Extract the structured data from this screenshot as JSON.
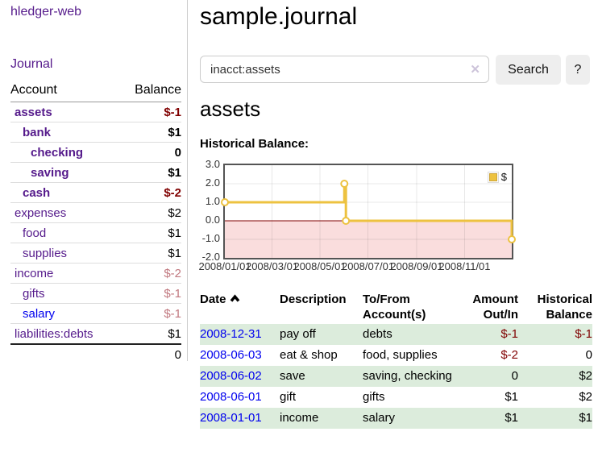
{
  "brand": "hledger-web",
  "nav": {
    "journal": "Journal"
  },
  "sidebar": {
    "header": {
      "account": "Account",
      "balance": "Balance"
    },
    "accounts": [
      {
        "name": "assets",
        "balance": "$-1"
      },
      {
        "name": "bank",
        "balance": "$1"
      },
      {
        "name": "checking",
        "balance": "0"
      },
      {
        "name": "saving",
        "balance": "$1"
      },
      {
        "name": "cash",
        "balance": "$-2"
      },
      {
        "name": "expenses",
        "balance": "$2"
      },
      {
        "name": "food",
        "balance": "$1"
      },
      {
        "name": "supplies",
        "balance": "$1"
      },
      {
        "name": "income",
        "balance": "$-2"
      },
      {
        "name": "gifts",
        "balance": "$-1"
      },
      {
        "name": "salary",
        "balance": "$-1"
      },
      {
        "name": "liabilities:debts",
        "balance": "$1"
      }
    ],
    "total": "0"
  },
  "main": {
    "title": "sample.journal",
    "search": {
      "value": "inacct:assets",
      "clear_icon": "✕",
      "button": "Search",
      "help": "?"
    },
    "account_heading": "assets",
    "chart_title": "Historical Balance:"
  },
  "chart_data": {
    "type": "line",
    "title": "Historical Balance:",
    "step": true,
    "legend": "$",
    "legend_position": "top-right",
    "grid": true,
    "x_min": "2008-01-01",
    "x_max": "2008-12-31",
    "ylim": [
      -2,
      3
    ],
    "yticks": [
      3,
      2,
      1,
      0,
      -1,
      -2
    ],
    "xticks": [
      {
        "date": "2008-01-01",
        "label": "2008/01/01"
      },
      {
        "date": "2008-03-01",
        "label": "2008/03/01"
      },
      {
        "date": "2008-05-01",
        "label": "2008/05/01"
      },
      {
        "date": "2008-07-01",
        "label": "2008/07/01"
      },
      {
        "date": "2008-09-01",
        "label": "2008/09/01"
      },
      {
        "date": "2008-11-01",
        "label": "2008/11/01"
      }
    ],
    "series": [
      {
        "name": "$",
        "color": "#edc240",
        "points": [
          [
            "2008-01-01",
            1
          ],
          [
            "2008-06-01",
            2
          ],
          [
            "2008-06-03",
            0
          ],
          [
            "2008-12-31",
            -1
          ]
        ]
      }
    ],
    "negative_region_color": "#fadddd",
    "zero_line_color": "#800000"
  },
  "register": {
    "headers": {
      "date": "Date",
      "description": "Description",
      "accounts": "To/From Account(s)",
      "amount": "Amount Out/In",
      "balance": "Historical Balance"
    },
    "rows": [
      {
        "date": "2008-12-31",
        "description": "pay off",
        "accounts": "debts",
        "amount": "$-1",
        "balance": "$-1"
      },
      {
        "date": "2008-06-03",
        "description": "eat & shop",
        "accounts": "food, supplies",
        "amount": "$-2",
        "balance": "0"
      },
      {
        "date": "2008-06-02",
        "description": "save",
        "accounts": "saving, checking",
        "amount": "0",
        "balance": "$2"
      },
      {
        "date": "2008-06-01",
        "description": "gift",
        "accounts": "gifts",
        "amount": "$1",
        "balance": "$2"
      },
      {
        "date": "2008-01-01",
        "description": "income",
        "accounts": "salary",
        "amount": "$1",
        "balance": "$1"
      }
    ]
  }
}
